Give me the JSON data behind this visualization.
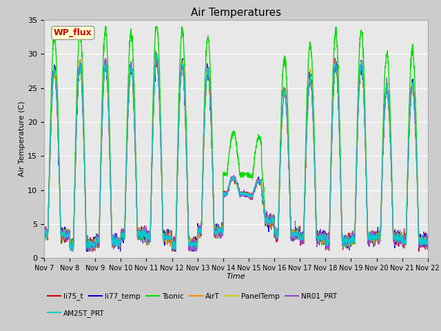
{
  "title": "Air Temperatures",
  "xlabel": "Time",
  "ylabel": "Air Temperature (C)",
  "ylim": [
    0,
    35
  ],
  "x_tick_labels": [
    "Nov 7",
    "Nov 8",
    "Nov 9",
    "Nov 10",
    "Nov 11",
    "Nov 12",
    "Nov 13",
    "Nov 14",
    "Nov 15",
    "Nov 16",
    "Nov 17",
    "Nov 18",
    "Nov 19",
    "Nov 20",
    "Nov 21",
    "Nov 22"
  ],
  "series": {
    "li75_t": {
      "color": "#cc0000",
      "lw": 0.8
    },
    "li77_temp": {
      "color": "#0000cc",
      "lw": 0.8
    },
    "Tsonic": {
      "color": "#00dd00",
      "lw": 1.0
    },
    "AirT": {
      "color": "#ff8800",
      "lw": 0.8
    },
    "PanelTemp": {
      "color": "#cccc00",
      "lw": 0.8
    },
    "NR01_PRT": {
      "color": "#9944cc",
      "lw": 0.8
    },
    "AM25T_PRT": {
      "color": "#00cccc",
      "lw": 0.8
    }
  },
  "annotation_text": "WP_flux",
  "annotation_color": "#cc0000",
  "annotation_bg": "#ffffcc",
  "annotation_border": "#999999",
  "fig_bg": "#cccccc",
  "plot_bg": "#e8e8e8",
  "n_days": 15,
  "pts_per_day": 144,
  "title_fontsize": 11,
  "yticks": [
    0,
    5,
    10,
    15,
    20,
    25,
    30,
    35
  ]
}
